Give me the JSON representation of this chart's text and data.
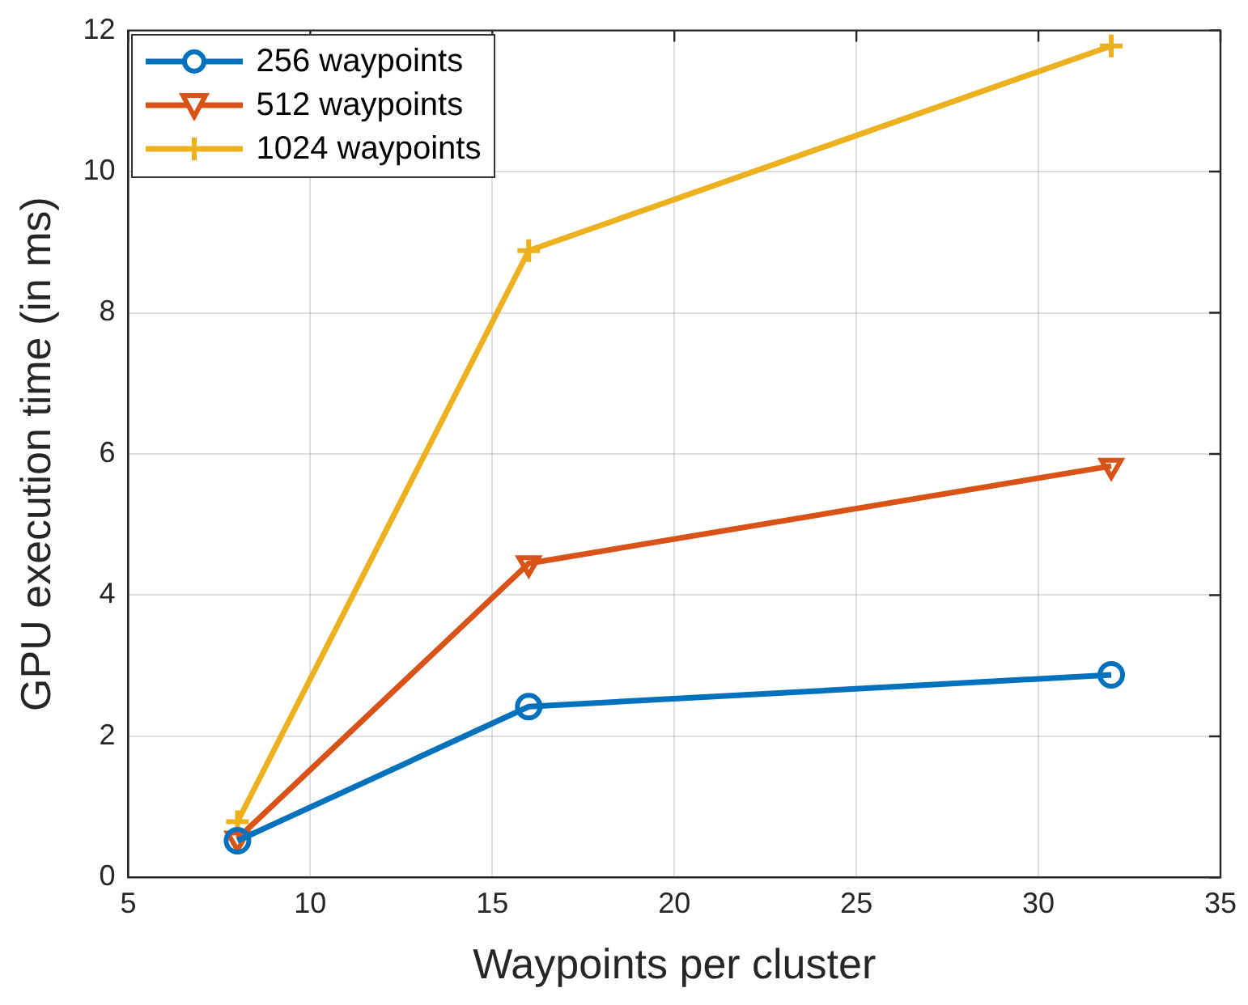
{
  "chart_data": {
    "type": "line",
    "xlabel": "Waypoints per cluster",
    "ylabel": "GPU execution time (in ms)",
    "x": [
      8,
      16,
      32
    ],
    "series": [
      {
        "name": "256 waypoints",
        "color": "#0072bd",
        "marker": "circle",
        "values": [
          0.52,
          2.42,
          2.87
        ]
      },
      {
        "name": "512 waypoints",
        "color": "#d95319",
        "marker": "triangle",
        "values": [
          0.55,
          4.45,
          5.83
        ]
      },
      {
        "name": "1024 waypoints",
        "color": "#edb120",
        "marker": "cross",
        "values": [
          0.79,
          8.88,
          11.78
        ]
      }
    ],
    "xlim": [
      5,
      35
    ],
    "xticks": [
      5,
      10,
      15,
      20,
      25,
      30,
      35
    ],
    "ylim": [
      0,
      12
    ],
    "yticks": [
      0,
      2,
      4,
      6,
      8,
      10,
      12
    ],
    "grid": true,
    "legend": "top left",
    "line_style": "solid"
  }
}
